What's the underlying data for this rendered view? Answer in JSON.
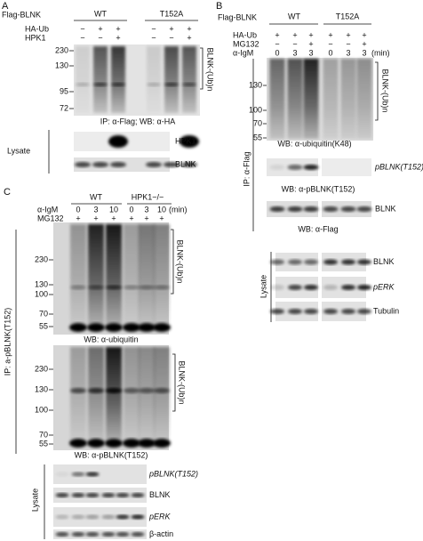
{
  "panel_a": {
    "label": "A",
    "construct": "Flag-BLNK",
    "groups": [
      "WT",
      "T152A"
    ],
    "rows": [
      {
        "name": "HA-Ub",
        "signs": [
          "−",
          "+",
          "+",
          "−",
          "+",
          "+"
        ]
      },
      {
        "name": "HPK1",
        "signs": [
          "−",
          "−",
          "+",
          "−",
          "−",
          "+"
        ]
      }
    ],
    "markers": [
      230,
      130,
      95,
      72
    ],
    "ub_label": "BLNK-(Ub)n",
    "caption": "IP: α-Flag; WB: α-HA",
    "lysate": "Lysate",
    "lysate_bands": [
      "HPK1",
      "BLNK"
    ]
  },
  "panel_b": {
    "label": "B",
    "construct": "Flag-BLNK",
    "groups": [
      "WT",
      "T152A"
    ],
    "rows": [
      {
        "name": "HA-Ub",
        "signs": [
          "+",
          "+",
          "+",
          "+",
          "+",
          "+"
        ]
      },
      {
        "name": "MG132",
        "signs": [
          "−",
          "−",
          "+",
          "−",
          "−",
          "+"
        ]
      },
      {
        "name": "α-IgM",
        "signs": [
          "0",
          "3",
          "3",
          "0",
          "3",
          "3"
        ],
        "unit": "(min)"
      }
    ],
    "markers": [
      130,
      100,
      70,
      55
    ],
    "ub_label": "BLNK-(Ub)n",
    "ub_caption": "WB: α-ubiquitin(K48)",
    "ip_label": "IP: α-Flag",
    "pblnk_band": "pBLNK(T152)",
    "pblnk_caption": "WB: α-pBLNK(T152)",
    "blnk_band": "BLNK",
    "blnk_caption": "WB: α-Flag",
    "lysate": "Lysate",
    "lysate_bands": [
      "BLNK",
      "pERK",
      "Tubulin"
    ]
  },
  "panel_c": {
    "label": "C",
    "groups": [
      "WT",
      "HPK1−/−"
    ],
    "rows": [
      {
        "name": "α-IgM",
        "signs": [
          "0",
          "3",
          "10",
          "0",
          "3",
          "10"
        ],
        "unit": "(min)"
      },
      {
        "name": "MG132",
        "signs": [
          "+",
          "+",
          "+",
          "+",
          "+",
          "+"
        ]
      }
    ],
    "blot1": {
      "markers": [
        230,
        130,
        100,
        70,
        55
      ],
      "ub_label": "BLNK-(Ub)n",
      "caption": "WB: α-ubiquitin"
    },
    "blot2": {
      "markers": [
        230,
        130,
        100,
        70,
        55
      ],
      "ub_label": "BLNK-(Ub)n",
      "caption": "WB: α-pBLNK(T152)"
    },
    "ip_label": "IP: a-pBLNK(T152)",
    "lysate": "Lysate",
    "lysate_bands": [
      "pBLNK(T152)",
      "BLNK",
      "pERK",
      "β-actin"
    ]
  }
}
